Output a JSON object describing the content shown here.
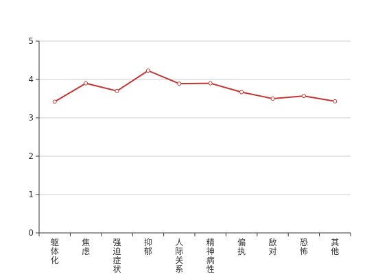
{
  "chart_data": {
    "type": "line",
    "categories": [
      "躯体化",
      "焦虑",
      "强迫症状",
      "抑郁",
      "人际关系敏",
      "精神病性",
      "偏执",
      "敌对",
      "恐怖",
      "其他"
    ],
    "series": [
      {
        "values": [
          3.42,
          3.9,
          3.7,
          4.23,
          3.89,
          3.9,
          3.67,
          3.5,
          3.57,
          3.43
        ]
      }
    ],
    "yticks": [
      "0",
      "1",
      "2",
      "3",
      "4",
      "5"
    ],
    "ylim": [
      0,
      5
    ],
    "grid": true,
    "colors": {
      "line": "#c23531",
      "grid": "#cccccc",
      "axis": "#333333"
    }
  }
}
